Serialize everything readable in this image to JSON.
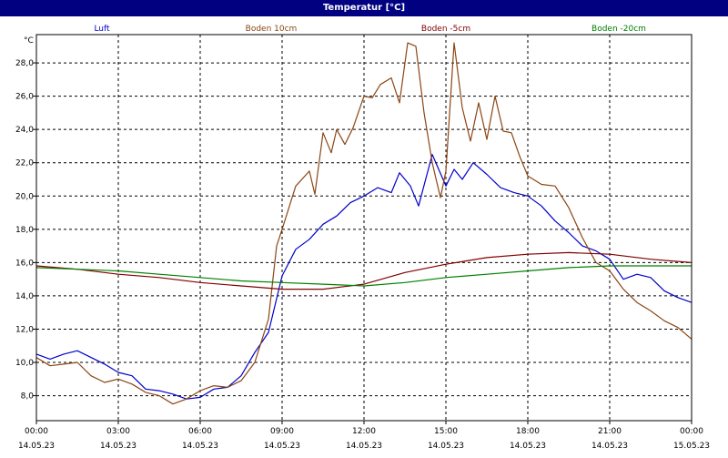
{
  "window": {
    "title": "Temperatur [°C]"
  },
  "chart_data": {
    "type": "line",
    "title": "Temperatur [°C]",
    "ylabel": "°C",
    "ylim": [
      6.5,
      29.7
    ],
    "xlim": [
      0,
      24
    ],
    "grid": true,
    "y_ticks": [
      8,
      10,
      12,
      14,
      16,
      18,
      20,
      22,
      24,
      26,
      28
    ],
    "y_tick_labels": [
      "8,0",
      "10,0",
      "12,0",
      "14,0",
      "16,0",
      "18,0",
      "20,0",
      "22,0",
      "24,0",
      "26,0",
      "28,0"
    ],
    "x_ticks": [
      {
        "hour": 0,
        "time": "00:00",
        "date": "14.05.23"
      },
      {
        "hour": 3,
        "time": "03:00",
        "date": "14.05.23"
      },
      {
        "hour": 6,
        "time": "06:00",
        "date": "14.05.23"
      },
      {
        "hour": 9,
        "time": "09:00",
        "date": "14.05.23"
      },
      {
        "hour": 12,
        "time": "12:00",
        "date": "14.05.23"
      },
      {
        "hour": 15,
        "time": "15:00",
        "date": "14.05.23"
      },
      {
        "hour": 18,
        "time": "18:00",
        "date": "14.05.23"
      },
      {
        "hour": 21,
        "time": "21:00",
        "date": "14.05.23"
      },
      {
        "hour": 24,
        "time": "00:00",
        "date": "15.05.23"
      }
    ],
    "series": [
      {
        "name": "Luft",
        "color": "#0000cc",
        "points": [
          [
            0,
            10.5
          ],
          [
            0.5,
            10.2
          ],
          [
            1,
            10.5
          ],
          [
            1.5,
            10.7
          ],
          [
            2,
            10.3
          ],
          [
            2.5,
            9.9
          ],
          [
            3,
            9.4
          ],
          [
            3.5,
            9.2
          ],
          [
            4,
            8.4
          ],
          [
            4.5,
            8.3
          ],
          [
            5,
            8.1
          ],
          [
            5.5,
            7.8
          ],
          [
            6,
            7.9
          ],
          [
            6.5,
            8.4
          ],
          [
            7,
            8.5
          ],
          [
            7.5,
            9.2
          ],
          [
            8,
            10.6
          ],
          [
            8.5,
            11.8
          ],
          [
            9,
            15.2
          ],
          [
            9.5,
            16.8
          ],
          [
            10,
            17.4
          ],
          [
            10.5,
            18.3
          ],
          [
            11,
            18.8
          ],
          [
            11.5,
            19.6
          ],
          [
            12,
            20.0
          ],
          [
            12.5,
            20.5
          ],
          [
            13,
            20.2
          ],
          [
            13.3,
            21.4
          ],
          [
            13.7,
            20.6
          ],
          [
            14,
            19.4
          ],
          [
            14.5,
            22.5
          ],
          [
            15,
            20.6
          ],
          [
            15.3,
            21.6
          ],
          [
            15.6,
            21.0
          ],
          [
            16,
            22.0
          ],
          [
            16.5,
            21.3
          ],
          [
            17,
            20.5
          ],
          [
            17.5,
            20.2
          ],
          [
            18,
            20.0
          ],
          [
            18.5,
            19.4
          ],
          [
            19,
            18.5
          ],
          [
            19.5,
            17.8
          ],
          [
            20,
            17.0
          ],
          [
            20.5,
            16.7
          ],
          [
            21,
            16.2
          ],
          [
            21.5,
            15.0
          ],
          [
            22,
            15.3
          ],
          [
            22.5,
            15.1
          ],
          [
            23,
            14.3
          ],
          [
            23.5,
            13.9
          ],
          [
            24,
            13.6
          ]
        ]
      },
      {
        "name": "Boden 10cm",
        "color": "#8b4513",
        "points": [
          [
            0,
            10.3
          ],
          [
            0.5,
            9.8
          ],
          [
            1,
            9.9
          ],
          [
            1.5,
            10.0
          ],
          [
            2,
            9.2
          ],
          [
            2.5,
            8.8
          ],
          [
            3,
            9.0
          ],
          [
            3.5,
            8.7
          ],
          [
            4,
            8.2
          ],
          [
            4.5,
            8.0
          ],
          [
            5,
            7.5
          ],
          [
            5.5,
            7.8
          ],
          [
            6,
            8.3
          ],
          [
            6.5,
            8.6
          ],
          [
            7,
            8.5
          ],
          [
            7.5,
            8.9
          ],
          [
            8,
            10.0
          ],
          [
            8.5,
            12.6
          ],
          [
            8.8,
            17.0
          ],
          [
            9,
            18.0
          ],
          [
            9.5,
            20.6
          ],
          [
            10,
            21.5
          ],
          [
            10.2,
            20.1
          ],
          [
            10.5,
            23.8
          ],
          [
            10.8,
            22.6
          ],
          [
            11,
            24.0
          ],
          [
            11.3,
            23.1
          ],
          [
            11.6,
            24.1
          ],
          [
            12,
            26.0
          ],
          [
            12.3,
            25.9
          ],
          [
            12.6,
            26.7
          ],
          [
            13,
            27.1
          ],
          [
            13.3,
            25.6
          ],
          [
            13.6,
            29.2
          ],
          [
            13.9,
            29.0
          ],
          [
            14.2,
            25.0
          ],
          [
            14.5,
            22.0
          ],
          [
            14.8,
            19.9
          ],
          [
            15,
            21.5
          ],
          [
            15.3,
            29.2
          ],
          [
            15.6,
            25.3
          ],
          [
            15.9,
            23.3
          ],
          [
            16.2,
            25.6
          ],
          [
            16.5,
            23.4
          ],
          [
            16.8,
            26.0
          ],
          [
            17.1,
            23.9
          ],
          [
            17.4,
            23.8
          ],
          [
            17.7,
            22.4
          ],
          [
            18,
            21.2
          ],
          [
            18.5,
            20.7
          ],
          [
            19,
            20.6
          ],
          [
            19.5,
            19.3
          ],
          [
            20,
            17.5
          ],
          [
            20.5,
            16.0
          ],
          [
            21,
            15.5
          ],
          [
            21.5,
            14.4
          ],
          [
            22,
            13.6
          ],
          [
            22.5,
            13.1
          ],
          [
            23,
            12.5
          ],
          [
            23.5,
            12.1
          ],
          [
            24,
            11.4
          ]
        ]
      },
      {
        "name": "Boden -5cm",
        "color": "#800000",
        "points": [
          [
            0,
            15.8
          ],
          [
            1.5,
            15.6
          ],
          [
            3,
            15.3
          ],
          [
            4.5,
            15.1
          ],
          [
            6,
            14.8
          ],
          [
            7.5,
            14.6
          ],
          [
            9,
            14.4
          ],
          [
            10.5,
            14.4
          ],
          [
            12,
            14.7
          ],
          [
            13.5,
            15.4
          ],
          [
            15,
            15.9
          ],
          [
            16.5,
            16.3
          ],
          [
            18,
            16.5
          ],
          [
            19.5,
            16.6
          ],
          [
            21,
            16.5
          ],
          [
            22.5,
            16.2
          ],
          [
            24,
            16.0
          ]
        ]
      },
      {
        "name": "Boden -20cm",
        "color": "#008000",
        "points": [
          [
            0,
            15.7
          ],
          [
            1.5,
            15.6
          ],
          [
            3,
            15.5
          ],
          [
            4.5,
            15.3
          ],
          [
            6,
            15.1
          ],
          [
            7.5,
            14.9
          ],
          [
            9,
            14.8
          ],
          [
            10.5,
            14.7
          ],
          [
            12,
            14.6
          ],
          [
            13.5,
            14.8
          ],
          [
            15,
            15.1
          ],
          [
            16.5,
            15.3
          ],
          [
            18,
            15.5
          ],
          [
            19.5,
            15.7
          ],
          [
            21,
            15.8
          ],
          [
            22.5,
            15.8
          ],
          [
            24,
            15.8
          ]
        ]
      }
    ]
  }
}
